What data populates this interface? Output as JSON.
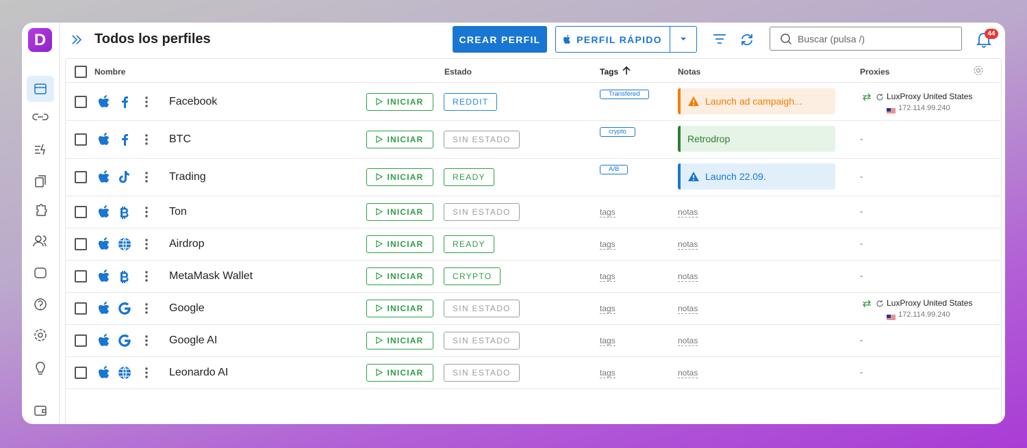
{
  "header": {
    "logo": "D",
    "title": "Todos los perfiles",
    "create_button": "CREAR PERFIL",
    "quick_button": "PERFIL RÁPIDO",
    "search_placeholder": "Buscar (pulsa /)",
    "notifications": "44"
  },
  "table": {
    "columns": [
      "Nombre",
      "Estado",
      "Tags",
      "Notas",
      "Proxies"
    ],
    "start_label": "INICIAR",
    "tag_placeholder": "tags",
    "note_placeholder": "notas",
    "proxy_empty": "-",
    "rows": [
      {
        "name": "Facebook",
        "status": "REDDIT",
        "status_color": "#1e88e5",
        "tag": "Transfered",
        "note": {
          "text": "Launch ad campaigh...",
          "color": "#f57c00",
          "background": "#fdeee2"
        },
        "proxy": {
          "name": "LuxProxy United States",
          "ip": "172.114.99.240"
        }
      },
      {
        "name": "BTC",
        "status": "SIN ESTADO",
        "status_color": "#9e9e9e",
        "tag": "crypto",
        "note": {
          "text": "Retrodrop",
          "color": "#2e7d32",
          "background": "#e6f4e8"
        },
        "proxy": null
      },
      {
        "name": "Trading",
        "status": "READY",
        "status_color": "#2e9e44",
        "tag": "A/B",
        "note": {
          "text": "Launch 22.09.",
          "color": "#1976d2",
          "background": "#e1effb"
        },
        "proxy": null
      },
      {
        "name": "Ton",
        "status": "SIN ESTADO",
        "status_color": "#9e9e9e",
        "tag": null,
        "note": null,
        "proxy": null
      },
      {
        "name": "Airdrop",
        "status": "READY",
        "status_color": "#2e9e44",
        "tag": null,
        "note": null,
        "proxy": null
      },
      {
        "name": "MetaMask Wallet",
        "status": "CRYPTO",
        "status_color": "#2e9e44",
        "tag": null,
        "note": null,
        "proxy": null
      },
      {
        "name": "Google",
        "status": "SIN ESTADO",
        "status_color": "#9e9e9e",
        "tag": null,
        "note": null,
        "proxy": {
          "name": "LuxProxy United States",
          "ip": "172.114.99.240"
        }
      },
      {
        "name": "Google AI",
        "status": "SIN ESTADO",
        "status_color": "#9e9e9e",
        "tag": null,
        "note": null,
        "proxy": null
      },
      {
        "name": "Leonardo AI",
        "status": "SIN ESTADO",
        "status_color": "#9e9e9e",
        "tag": null,
        "note": null,
        "proxy": null
      }
    ]
  }
}
